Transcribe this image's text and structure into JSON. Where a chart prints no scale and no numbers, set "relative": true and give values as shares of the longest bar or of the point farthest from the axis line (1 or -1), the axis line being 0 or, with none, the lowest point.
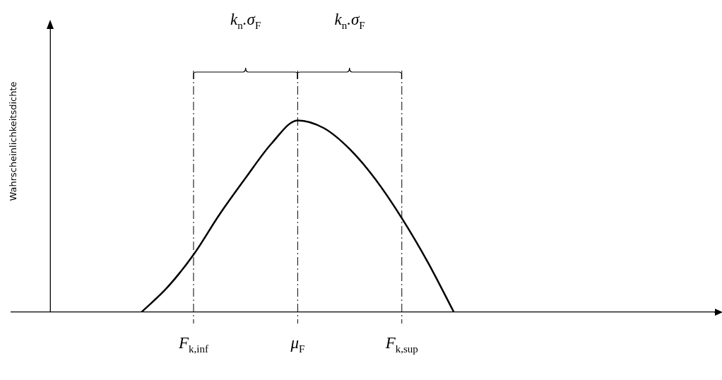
{
  "chart_data": {
    "type": "line",
    "ylabel": "Wahrscheinlichkeitsdichte",
    "relative": true,
    "color": "#000000",
    "categories": [
      null,
      null,
      null,
      null,
      null,
      null,
      null,
      "F$_{k,inf}$",
      null,
      null,
      null,
      "μ$_{F}$",
      null,
      null,
      null,
      "F$_{k,sup}$",
      null,
      null,
      null,
      null,
      null,
      null,
      null,
      null,
      null,
      null,
      null,
      null
    ],
    "values": [
      null,
      null,
      null,
      null,
      null,
      0,
      0.13,
      0.3,
      0.51,
      0.7,
      0.88,
      1,
      0.96,
      0.85,
      0.69,
      0.49,
      0.26,
      0,
      null,
      null,
      null,
      null,
      null,
      null,
      null,
      null,
      null,
      null
    ],
    "ref_lines": [
      {
        "axis": "x",
        "value": "F$_{k,inf}$",
        "line_style": "dashed",
        "color": "#000000"
      },
      {
        "axis": "x",
        "value": "μ$_{F}$",
        "line_style": "dashed",
        "color": "#000000"
      },
      {
        "axis": "x",
        "value": "F$_{k,sup}$",
        "line_style": "dashed",
        "color": "#000000"
      }
    ],
    "annotations": [
      "k$_{n}$.σ$_{F}$",
      "k$_{n}$.σ$_{F}$"
    ]
  }
}
